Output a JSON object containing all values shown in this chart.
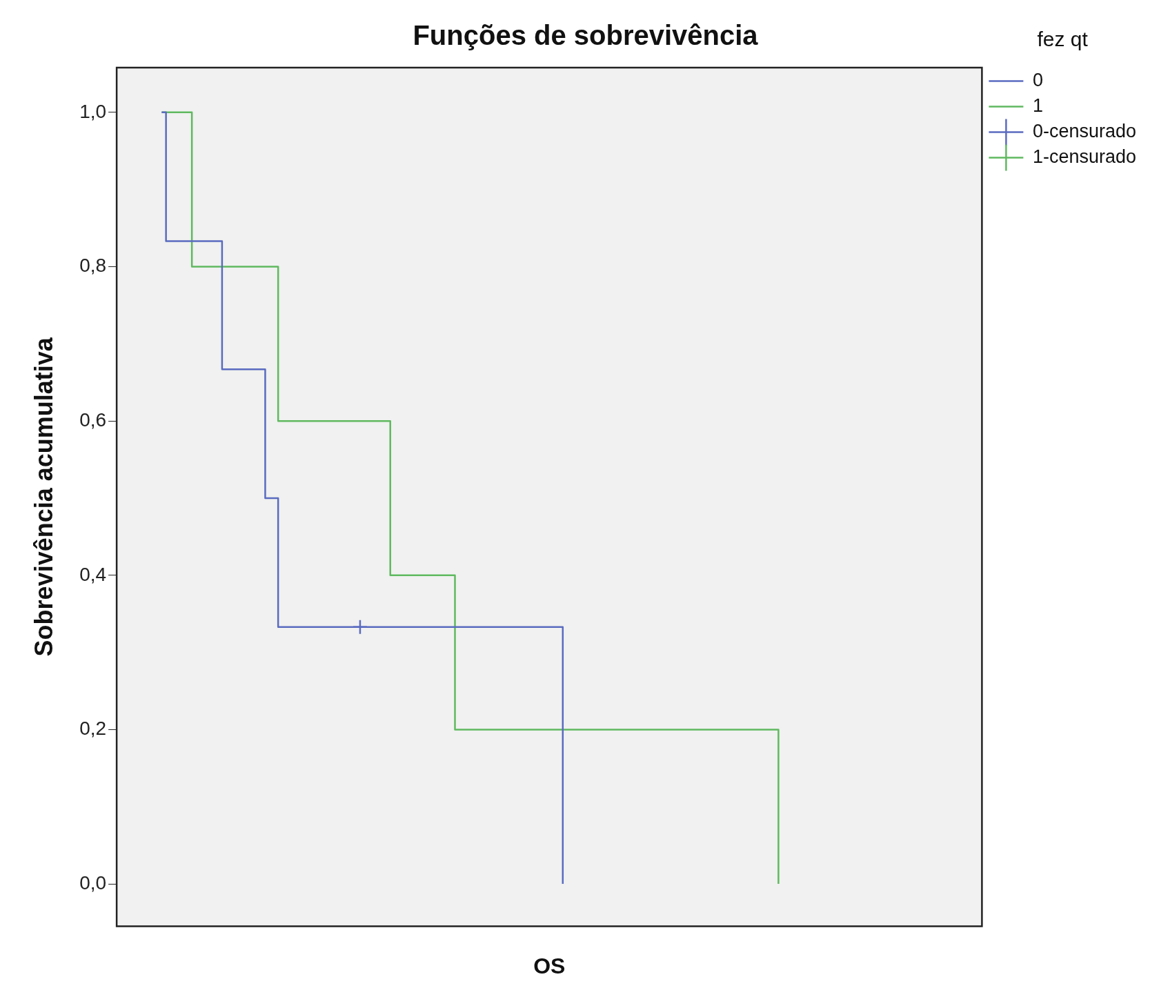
{
  "chart_data": {
    "type": "step",
    "title": "Funções de sobrevivência",
    "xlabel": "OS",
    "ylabel": "Sobrevivência acumulativa",
    "legend_title": "fez qt",
    "legend": "top right",
    "tick_labels": "y",
    "categories": [
      null,
      null,
      null,
      null,
      null,
      null,
      null,
      null,
      null,
      null,
      null,
      null,
      null,
      null,
      null,
      null,
      null,
      null,
      null,
      null,
      null,
      null,
      null,
      null,
      null,
      null,
      null,
      null,
      null,
      null,
      null,
      null,
      null,
      null,
      null,
      null,
      null,
      null,
      null,
      null,
      null,
      null,
      null,
      null,
      null,
      null,
      null,
      null,
      null,
      null,
      null,
      null,
      null,
      null,
      null,
      null,
      null,
      null,
      null,
      null,
      null,
      null,
      null,
      null,
      null,
      null,
      null,
      null,
      null,
      null,
      null,
      null,
      null,
      null,
      null,
      null,
      null,
      null,
      null,
      null,
      null,
      null,
      null,
      null,
      null,
      null,
      null,
      null,
      null,
      null,
      null,
      null,
      null,
      null,
      null,
      null,
      null,
      null,
      null,
      null,
      null,
      null,
      null,
      null,
      null,
      null,
      null,
      null,
      null,
      null,
      null,
      null,
      null,
      null,
      null,
      null,
      null,
      null,
      null,
      null,
      null,
      null,
      null,
      null,
      null,
      null,
      null,
      null,
      null,
      null,
      null,
      null,
      null,
      null,
      null,
      null,
      null,
      null,
      null,
      null,
      null,
      null,
      null,
      null
    ],
    "ylim": [
      -0.055,
      1.058
    ],
    "yticks": [
      {
        "value": 0,
        "label": "0,0"
      },
      {
        "value": 0.2,
        "label": "0,2"
      },
      {
        "value": 0.4,
        "label": "0,4"
      },
      {
        "value": 0.6,
        "label": "0,6"
      },
      {
        "value": 0.8,
        "label": "0,8"
      },
      {
        "value": 1,
        "label": "1,0"
      }
    ],
    "series": [
      {
        "name": "0",
        "color": "#5a6bc0",
        "marker": "none",
        "values": [
          1,
          0.833,
          0.833,
          0.833,
          0.833,
          0.833,
          0.833,
          0.833,
          0.833,
          0.833,
          0.833,
          0.833,
          0.833,
          0.833,
          0.667,
          0.667,
          0.667,
          0.667,
          0.667,
          0.667,
          0.667,
          0.667,
          0.667,
          0.667,
          0.5,
          0.5,
          0.5,
          0.333,
          0.333,
          0.333,
          0.333,
          0.333,
          0.333,
          0.333,
          0.333,
          0.333,
          0.333,
          0.333,
          0.333,
          0.333,
          0.333,
          0.333,
          0.333,
          0.333,
          0.333,
          0.333,
          0.333,
          0.333,
          0.333,
          0.333,
          0.333,
          0.333,
          0.333,
          0.333,
          0.333,
          0.333,
          0.333,
          0.333,
          0.333,
          0.333,
          0.333,
          0.333,
          0.333,
          0.333,
          0.333,
          0.333,
          0.333,
          0.333,
          0.333,
          0.333,
          0.333,
          0.333,
          0.333,
          0.333,
          0.333,
          0.333,
          0.333,
          0.333,
          0.333,
          0.333,
          0.333,
          0.333,
          0.333,
          0.333,
          0.333,
          0.333,
          0.333,
          0.333,
          0.333,
          0.333,
          0.333,
          0.333,
          0.333,
          0,
          null,
          null,
          null,
          null,
          null,
          null,
          null,
          null,
          null,
          null,
          null,
          null,
          null,
          null,
          null,
          null,
          null,
          null,
          null,
          null,
          null,
          null,
          null,
          null,
          null,
          null,
          null,
          null,
          null,
          null,
          null,
          null,
          null,
          null,
          null,
          null,
          null,
          null,
          null,
          null,
          null,
          null,
          null,
          null,
          null,
          null,
          null,
          null,
          null,
          null
        ]
      },
      {
        "name": "1",
        "color": "#5fb95f",
        "marker": "none",
        "values": [
          1,
          1,
          1,
          1,
          1,
          1,
          1,
          0.8,
          0.8,
          0.8,
          0.8,
          0.8,
          0.8,
          0.8,
          0.8,
          0.8,
          0.8,
          0.8,
          0.8,
          0.8,
          0.8,
          0.8,
          0.8,
          0.8,
          0.8,
          0.8,
          0.8,
          0.6,
          0.6,
          0.6,
          0.6,
          0.6,
          0.6,
          0.6,
          0.6,
          0.6,
          0.6,
          0.6,
          0.6,
          0.6,
          0.6,
          0.6,
          0.6,
          0.6,
          0.6,
          0.6,
          0.6,
          0.6,
          0.6,
          0.6,
          0.6,
          0.6,
          0.6,
          0.4,
          0.4,
          0.4,
          0.4,
          0.4,
          0.4,
          0.4,
          0.4,
          0.4,
          0.4,
          0.4,
          0.4,
          0.4,
          0.4,
          0.4,
          0.2,
          0.2,
          0.2,
          0.2,
          0.2,
          0.2,
          0.2,
          0.2,
          0.2,
          0.2,
          0.2,
          0.2,
          0.2,
          0.2,
          0.2,
          0.2,
          0.2,
          0.2,
          0.2,
          0.2,
          0.2,
          0.2,
          0.2,
          0.2,
          0.2,
          0.2,
          0.2,
          0.2,
          0.2,
          0.2,
          0.2,
          0.2,
          0.2,
          0.2,
          0.2,
          0.2,
          0.2,
          0.2,
          0.2,
          0.2,
          0.2,
          0.2,
          0.2,
          0.2,
          0.2,
          0.2,
          0.2,
          0.2,
          0.2,
          0.2,
          0.2,
          0.2,
          0.2,
          0.2,
          0.2,
          0.2,
          0.2,
          0.2,
          0.2,
          0.2,
          0.2,
          0.2,
          0.2,
          0.2,
          0.2,
          0.2,
          0.2,
          0.2,
          0.2,
          0.2,
          0.2,
          0.2,
          0.2,
          0.2,
          0.2,
          0
        ]
      },
      {
        "name": "0-censurado",
        "type": "scatter",
        "color": "#5a6bc0",
        "marker": "cross",
        "values": [
          null,
          null,
          null,
          null,
          null,
          null,
          null,
          null,
          null,
          null,
          null,
          null,
          null,
          null,
          null,
          null,
          null,
          null,
          null,
          null,
          null,
          null,
          null,
          null,
          null,
          null,
          null,
          null,
          null,
          null,
          null,
          null,
          null,
          null,
          null,
          null,
          null,
          null,
          null,
          null,
          null,
          null,
          null,
          null,
          null,
          null,
          0.333,
          null,
          null,
          null,
          null,
          null,
          null,
          null,
          null,
          null,
          null,
          null,
          null,
          null,
          null,
          null,
          null,
          null,
          null,
          null,
          null,
          null,
          null,
          null,
          null,
          null,
          null,
          null,
          null,
          null,
          null,
          null,
          null,
          null,
          null,
          null,
          null,
          null,
          null,
          null,
          null,
          null,
          null,
          null,
          null,
          null,
          null,
          null,
          null,
          null,
          null,
          null,
          null,
          null,
          null,
          null,
          null,
          null,
          null,
          null,
          null,
          null,
          null,
          null,
          null,
          null,
          null,
          null,
          null,
          null,
          null,
          null,
          null,
          null,
          null,
          null,
          null,
          null,
          null,
          null,
          null,
          null,
          null,
          null,
          null,
          null,
          null,
          null,
          null,
          null,
          null,
          null,
          null,
          null,
          null,
          null,
          null,
          null
        ]
      },
      {
        "name": "1-censurado",
        "type": "scatter",
        "color": "#5fb95f",
        "marker": "cross",
        "values": [
          null,
          null,
          null,
          null,
          null,
          null,
          null,
          null,
          null,
          null,
          null,
          null,
          null,
          null,
          null,
          null,
          null,
          null,
          null,
          null,
          null,
          null,
          null,
          null,
          null,
          null,
          null,
          null,
          null,
          null,
          null,
          null,
          null,
          null,
          null,
          null,
          null,
          null,
          null,
          null,
          null,
          null,
          null,
          null,
          null,
          null,
          null,
          null,
          null,
          null,
          null,
          null,
          null,
          null,
          null,
          null,
          null,
          null,
          null,
          null,
          null,
          null,
          null,
          null,
          null,
          null,
          null,
          null,
          null,
          null,
          null,
          null,
          null,
          null,
          null,
          null,
          null,
          null,
          null,
          null,
          null,
          null,
          null,
          null,
          null,
          null,
          null,
          null,
          null,
          null,
          null,
          null,
          null,
          null,
          null,
          null,
          null,
          null,
          null,
          null,
          null,
          null,
          null,
          null,
          null,
          null,
          null,
          null,
          null,
          null,
          null,
          null,
          null,
          null,
          null,
          null,
          null,
          null,
          null,
          null,
          null,
          null,
          null,
          null,
          null,
          null,
          null,
          null,
          null,
          null,
          null,
          null,
          null,
          null,
          null,
          null,
          null,
          null,
          null,
          null,
          null,
          null,
          null,
          null
        ]
      }
    ]
  }
}
